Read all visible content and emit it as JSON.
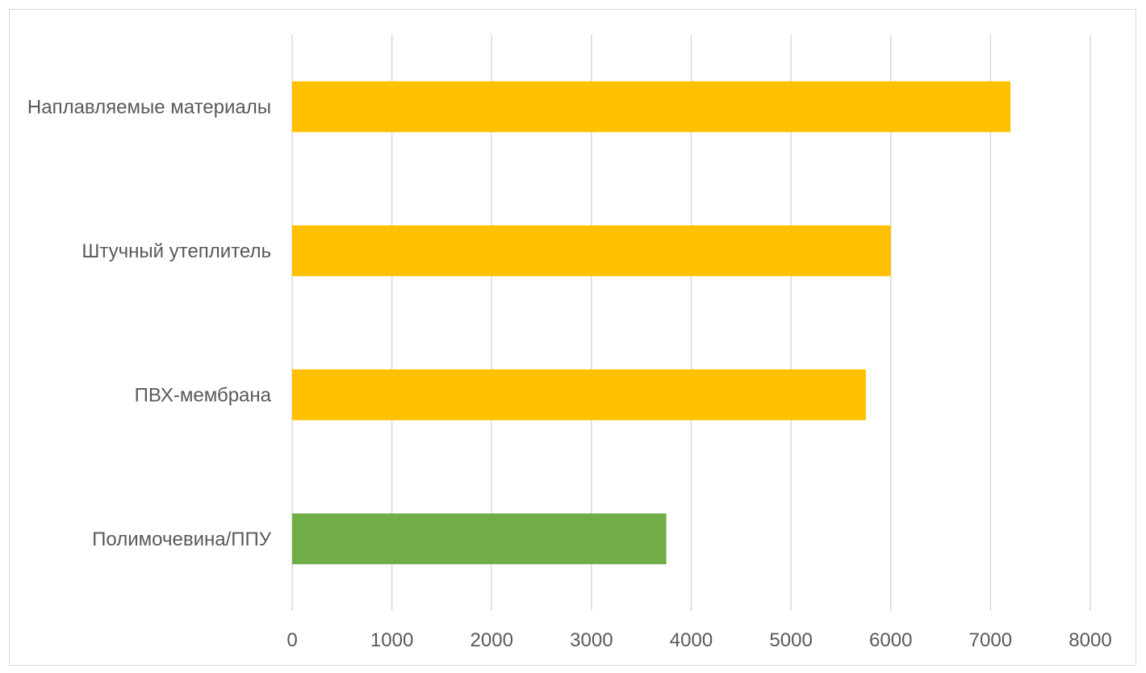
{
  "chart_data": {
    "type": "bar",
    "orientation": "horizontal",
    "categories": [
      "Наплавляемые материалы",
      "Штучный утеплитель",
      "ПВХ-мембрана",
      "Полимочевина/ППУ"
    ],
    "values": [
      7200,
      6000,
      5750,
      3750
    ],
    "bar_colors": [
      "#FFC000",
      "#FFC000",
      "#FFC000",
      "#70AD47"
    ],
    "title": "",
    "xlabel": "",
    "ylabel": "",
    "xlim": [
      0,
      8000
    ],
    "x_ticks": [
      "0",
      "1000",
      "2000",
      "3000",
      "4000",
      "5000",
      "6000",
      "7000",
      "8000"
    ],
    "grid": true,
    "legend": "none"
  },
  "colors": {
    "gridline": "#d9d9d9",
    "text": "#595959",
    "frame": "#d9d9d9"
  }
}
